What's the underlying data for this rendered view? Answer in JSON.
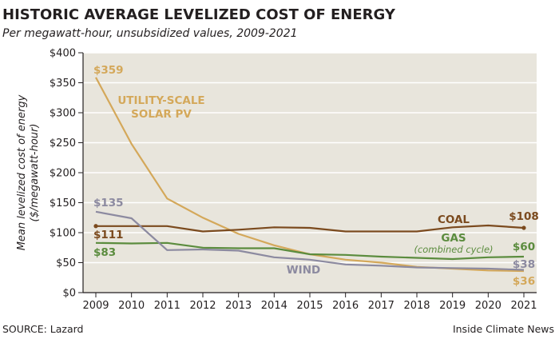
{
  "header": {
    "title": "HISTORIC AVERAGE LEVELIZED COST OF ENERGY",
    "subtitle": "Per megawatt-hour, unsubsidized values, 2009-2021"
  },
  "footer": {
    "source": "SOURCE: Lazard",
    "credit": "Inside Climate News"
  },
  "chart_data": {
    "type": "line",
    "ylabel": "Mean levelized cost of energy ($/megawatt-hour)",
    "ylabel_lines": [
      "Mean levelized cost of energy",
      "($/megawatt-hour)"
    ],
    "x": [
      2009,
      2010,
      2011,
      2012,
      2013,
      2014,
      2015,
      2016,
      2017,
      2018,
      2019,
      2020,
      2021
    ],
    "ylim": [
      0,
      400
    ],
    "yticks": [
      0,
      50,
      100,
      150,
      200,
      250,
      300,
      350,
      400
    ],
    "ytick_labels": [
      "$0",
      "$50",
      "$100",
      "$150",
      "$200",
      "$250",
      "$300",
      "$350",
      "$400"
    ],
    "grid": "horizontal",
    "plot_background": "#e8e5dc",
    "series": [
      {
        "name": "UTILITY-SCALE SOLAR PV",
        "name_lines": [
          "UTILITY-SCALE",
          "SOLAR PV"
        ],
        "color": "#d4a85a",
        "values": [
          359,
          248,
          157,
          125,
          98,
          79,
          64,
          55,
          50,
          43,
          40,
          37,
          36
        ],
        "start_label": "$359",
        "end_label": "$36"
      },
      {
        "name": "COAL",
        "color": "#7b4a1e",
        "values": [
          111,
          111,
          111,
          102,
          105,
          109,
          108,
          102,
          102,
          102,
          109,
          112,
          108
        ],
        "start_label": "$111",
        "end_label": "$108"
      },
      {
        "name": "GAS",
        "note": "(combined cycle)",
        "color": "#5b8c3e",
        "values": [
          83,
          82,
          83,
          75,
          74,
          74,
          64,
          63,
          60,
          58,
          56,
          59,
          60
        ],
        "start_label": "$83",
        "end_label": "$60"
      },
      {
        "name": "WIND",
        "color": "#8c8aa0",
        "values": [
          135,
          124,
          71,
          72,
          70,
          59,
          55,
          47,
          45,
          42,
          41,
          40,
          38
        ],
        "start_label": "$135",
        "end_label": "$38"
      }
    ]
  }
}
